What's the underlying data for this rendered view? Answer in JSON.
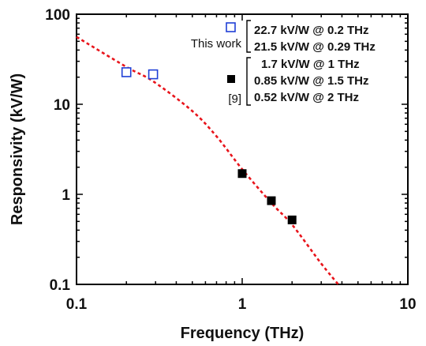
{
  "chart_data": {
    "type": "scatter",
    "xlabel": "Frequency (THz)",
    "ylabel": "Responsivity (kV/W)",
    "x_scale": "log",
    "y_scale": "log",
    "xlim": [
      0.1,
      10
    ],
    "ylim": [
      0.1,
      100
    ],
    "x_ticks": [
      "0.1",
      "1",
      "10"
    ],
    "y_ticks": [
      "0.1",
      "1",
      "10",
      "100"
    ],
    "grid": false,
    "legend_position": "top-right",
    "series": [
      {
        "name": "This work",
        "marker": "open-square",
        "color": "#1f3fd6",
        "x": [
          0.2,
          0.29
        ],
        "y": [
          22.7,
          21.5
        ],
        "labels": [
          "22.7 kV/W @ 0.2 THz",
          "21.5 kV/W @ 0.29 THz"
        ]
      },
      {
        "name": "[9]",
        "marker": "filled-square",
        "color": "#000000",
        "x": [
          1,
          1.5,
          2
        ],
        "y": [
          1.7,
          0.85,
          0.52
        ],
        "labels": [
          "1.7 kV/W @ 1 THz",
          "0.85 kV/W @ 1.5 THz",
          "0.52 kV/W @ 2 THz"
        ]
      },
      {
        "name": "",
        "style": "dotted-line",
        "color": "#e8141b",
        "x": [
          0.1,
          0.2,
          0.29,
          0.5,
          0.7,
          1,
          1.5,
          2,
          3,
          3.8
        ],
        "y": [
          56,
          26,
          18,
          8.4,
          4.4,
          1.9,
          0.8,
          0.46,
          0.17,
          0.1
        ]
      }
    ]
  }
}
